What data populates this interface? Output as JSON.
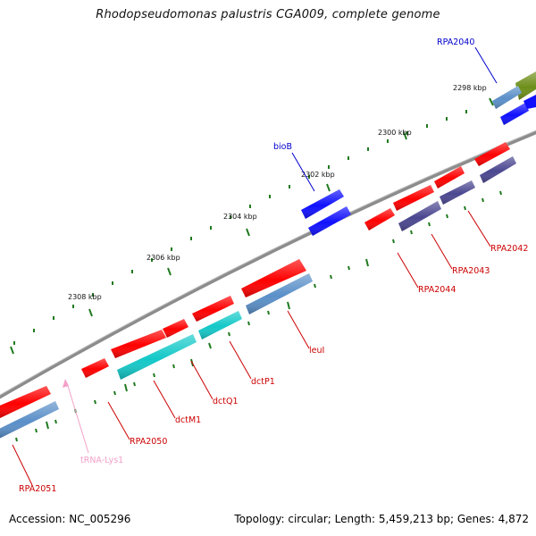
{
  "title": "Rhodopseudomonas palustris CGA009, complete genome",
  "footer": {
    "accession": "Accession: NC_005296",
    "topology": "Topology: circular; Length: 5,459,213 bp; Genes: 4,872"
  },
  "colors": {
    "backbone": "#8c8c8c",
    "tick": "#1f7a1f",
    "gene_forward": "#ff0000",
    "gene_reverse_blue": "#5a8fc8",
    "gene_reverse_dark": "#4b4790",
    "gene_cyan": "#14c8c8",
    "gene_bright_blue": "#1010ff",
    "gene_olive": "#6e8f1a",
    "trna": "#f4a0c8",
    "label_red": "#cc0000",
    "label_blue": "#0000cc",
    "label_pink": "#f2a0c8"
  },
  "kbp_labels": [
    "2298 kbp",
    "2300 kbp",
    "2302 kbp",
    "2304 kbp",
    "2306 kbp",
    "2308 kbp"
  ],
  "genes": [
    "RPA2040",
    "bioB",
    "RPA2042",
    "RPA2043",
    "RPA2044",
    "leuI",
    "dctP1",
    "dctQ1",
    "dctM1",
    "RPA2050",
    "tRNA-Lys1",
    "RPA2051"
  ]
}
